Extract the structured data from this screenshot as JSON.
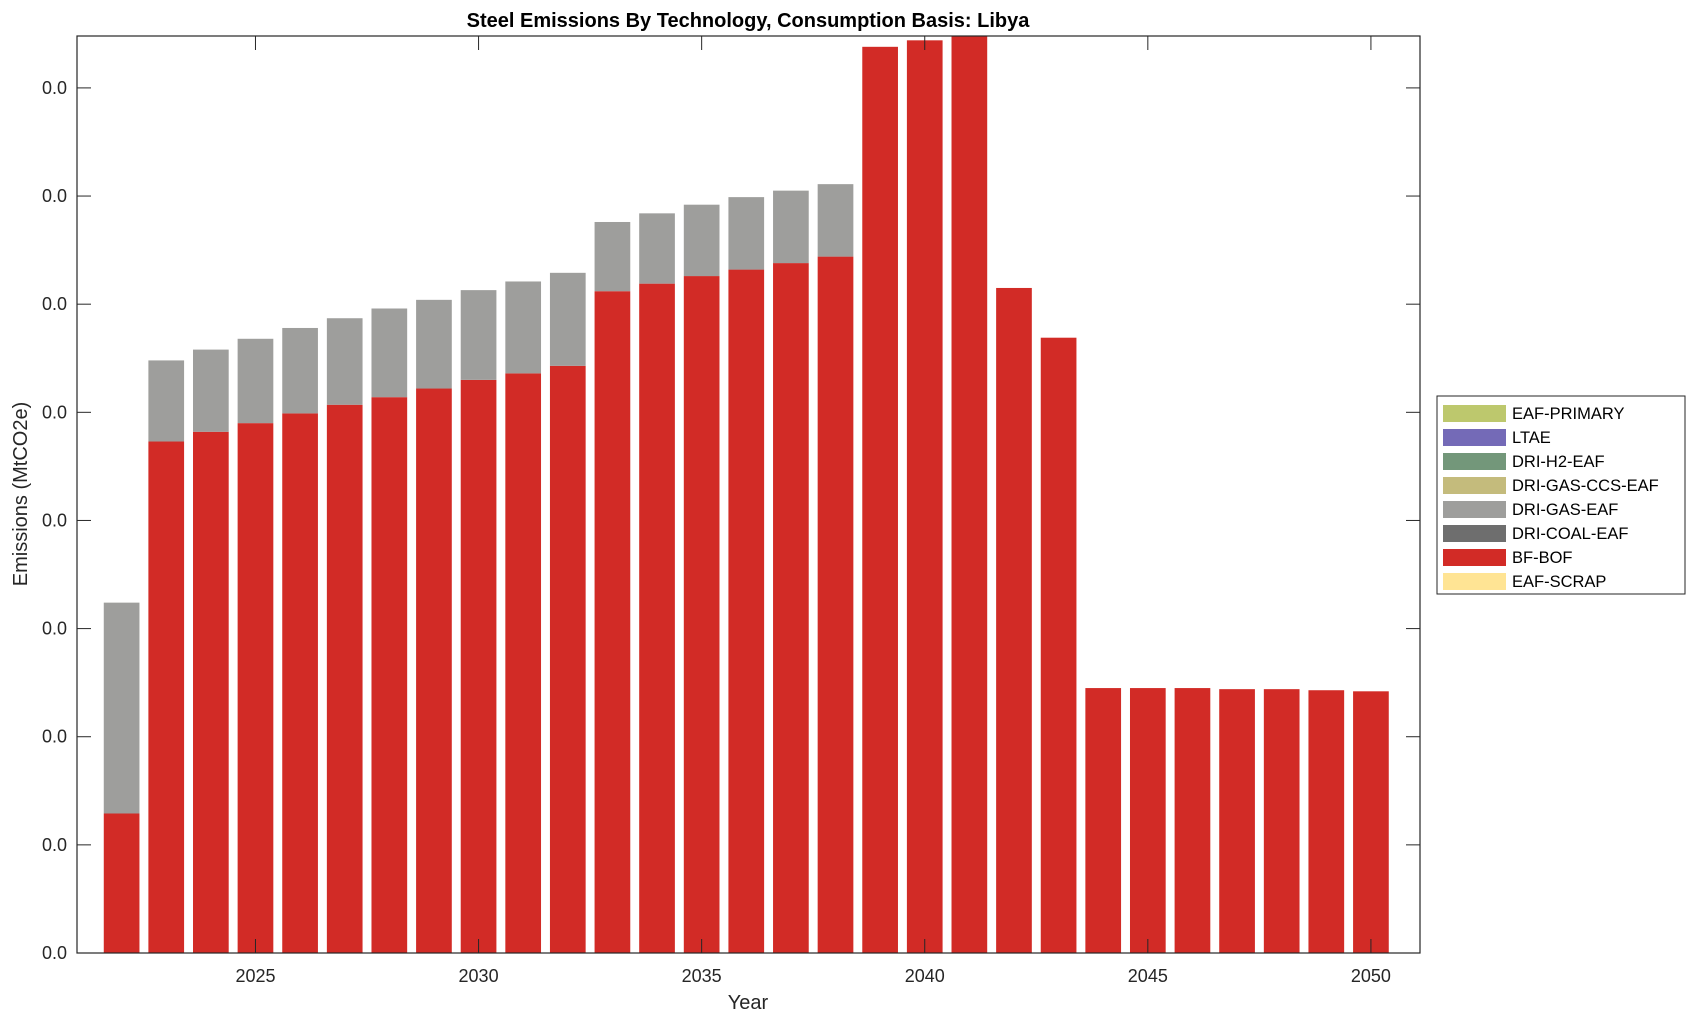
{
  "chart_data": {
    "type": "bar",
    "stacked": true,
    "title": "Steel Emissions By Technology, Consumption Basis: Libya",
    "xlabel": "Year",
    "ylabel": "Emissions (MtCO2e)",
    "xlim": [
      2021,
      2051.1
    ],
    "ylim": [
      0,
      0.0848
    ],
    "xticks": [
      2025,
      2030,
      2035,
      2040,
      2045,
      2050
    ],
    "xtick_labels": [
      "2025",
      "2030",
      "2035",
      "2040",
      "2045",
      "2050"
    ],
    "yticks": [
      0,
      0.01,
      0.02,
      0.03,
      0.04,
      0.05,
      0.06,
      0.07,
      0.08
    ],
    "ytick_labels": [
      "0.0",
      "0.0",
      "0.0",
      "0.0",
      "0.0",
      "0.0",
      "0.0",
      "0.0",
      "0.0"
    ],
    "grid": false,
    "legend_placement": "outside-right",
    "categories": [
      2022,
      2023,
      2024,
      2025,
      2026,
      2027,
      2028,
      2029,
      2030,
      2031,
      2032,
      2033,
      2034,
      2035,
      2036,
      2037,
      2038,
      2039,
      2040,
      2041,
      2042,
      2043,
      2044,
      2045,
      2046,
      2047,
      2048,
      2049,
      2050
    ],
    "series": [
      {
        "name": "EAF-SCRAP",
        "color": "#FFE494",
        "values": [
          0,
          0,
          0,
          0,
          0,
          0,
          0,
          0,
          0,
          0,
          0,
          0,
          0,
          0,
          0,
          0,
          0,
          0,
          0,
          0,
          0,
          0,
          0,
          0,
          0,
          0,
          0,
          0,
          0
        ]
      },
      {
        "name": "BF-BOF",
        "color": "#D22B26",
        "values": [
          0.0129,
          0.0473,
          0.0482,
          0.049,
          0.0499,
          0.0507,
          0.0514,
          0.0522,
          0.053,
          0.0536,
          0.0543,
          0.0612,
          0.0619,
          0.0626,
          0.0632,
          0.0638,
          0.0644,
          0.0838,
          0.0844,
          0.085,
          0.0615,
          0.0569,
          0.0245,
          0.0245,
          0.0245,
          0.0244,
          0.0244,
          0.0243,
          0.0242
        ]
      },
      {
        "name": "DRI-COAL-EAF",
        "color": "#6E6E6E",
        "values": [
          0,
          0,
          0,
          0,
          0,
          0,
          0,
          0,
          0,
          0,
          0,
          0,
          0,
          0,
          0,
          0,
          0,
          0,
          0,
          0,
          0,
          0,
          0,
          0,
          0,
          0,
          0,
          0,
          0
        ]
      },
      {
        "name": "DRI-GAS-EAF",
        "color": "#9E9E9C",
        "values": [
          0.0195,
          0.0075,
          0.0076,
          0.0078,
          0.0079,
          0.008,
          0.0082,
          0.0082,
          0.0083,
          0.0085,
          0.0086,
          0.0064,
          0.0065,
          0.0066,
          0.0067,
          0.0067,
          0.0067,
          0,
          0,
          0,
          0,
          0,
          0,
          0,
          0,
          0,
          0,
          0,
          0
        ]
      },
      {
        "name": "DRI-GAS-CCS-EAF",
        "color": "#C4BB7C",
        "values": [
          0,
          0,
          0,
          0,
          0,
          0,
          0,
          0,
          0,
          0,
          0,
          0,
          0,
          0,
          0,
          0,
          0,
          0,
          0,
          0,
          0,
          0,
          0,
          0,
          0,
          0,
          0,
          0,
          0
        ]
      },
      {
        "name": "DRI-H2-EAF",
        "color": "#73977A",
        "values": [
          0,
          0,
          0,
          0,
          0,
          0,
          0,
          0,
          0,
          0,
          0,
          0,
          0,
          0,
          0,
          0,
          0,
          0,
          0,
          0,
          0,
          0,
          0,
          0,
          0,
          0,
          0,
          0,
          0
        ]
      },
      {
        "name": "LTAE",
        "color": "#746AB7",
        "values": [
          0,
          0,
          0,
          0,
          0,
          0,
          0,
          0,
          0,
          0,
          0,
          0,
          0,
          0,
          0,
          0,
          0,
          0,
          0,
          0,
          0,
          0,
          0,
          0,
          0,
          0,
          0,
          0,
          0
        ]
      },
      {
        "name": "EAF-PRIMARY",
        "color": "#BDC86D",
        "values": [
          0,
          0,
          0,
          0,
          0,
          0,
          0,
          0,
          0,
          0,
          0,
          0,
          0,
          0,
          0,
          0,
          0,
          0,
          0,
          0,
          0,
          0,
          0,
          0,
          0,
          0,
          0,
          0,
          0
        ]
      }
    ],
    "legend_order": [
      "EAF-PRIMARY",
      "LTAE",
      "DRI-H2-EAF",
      "DRI-GAS-CCS-EAF",
      "DRI-GAS-EAF",
      "DRI-COAL-EAF",
      "BF-BOF",
      "EAF-SCRAP"
    ]
  }
}
